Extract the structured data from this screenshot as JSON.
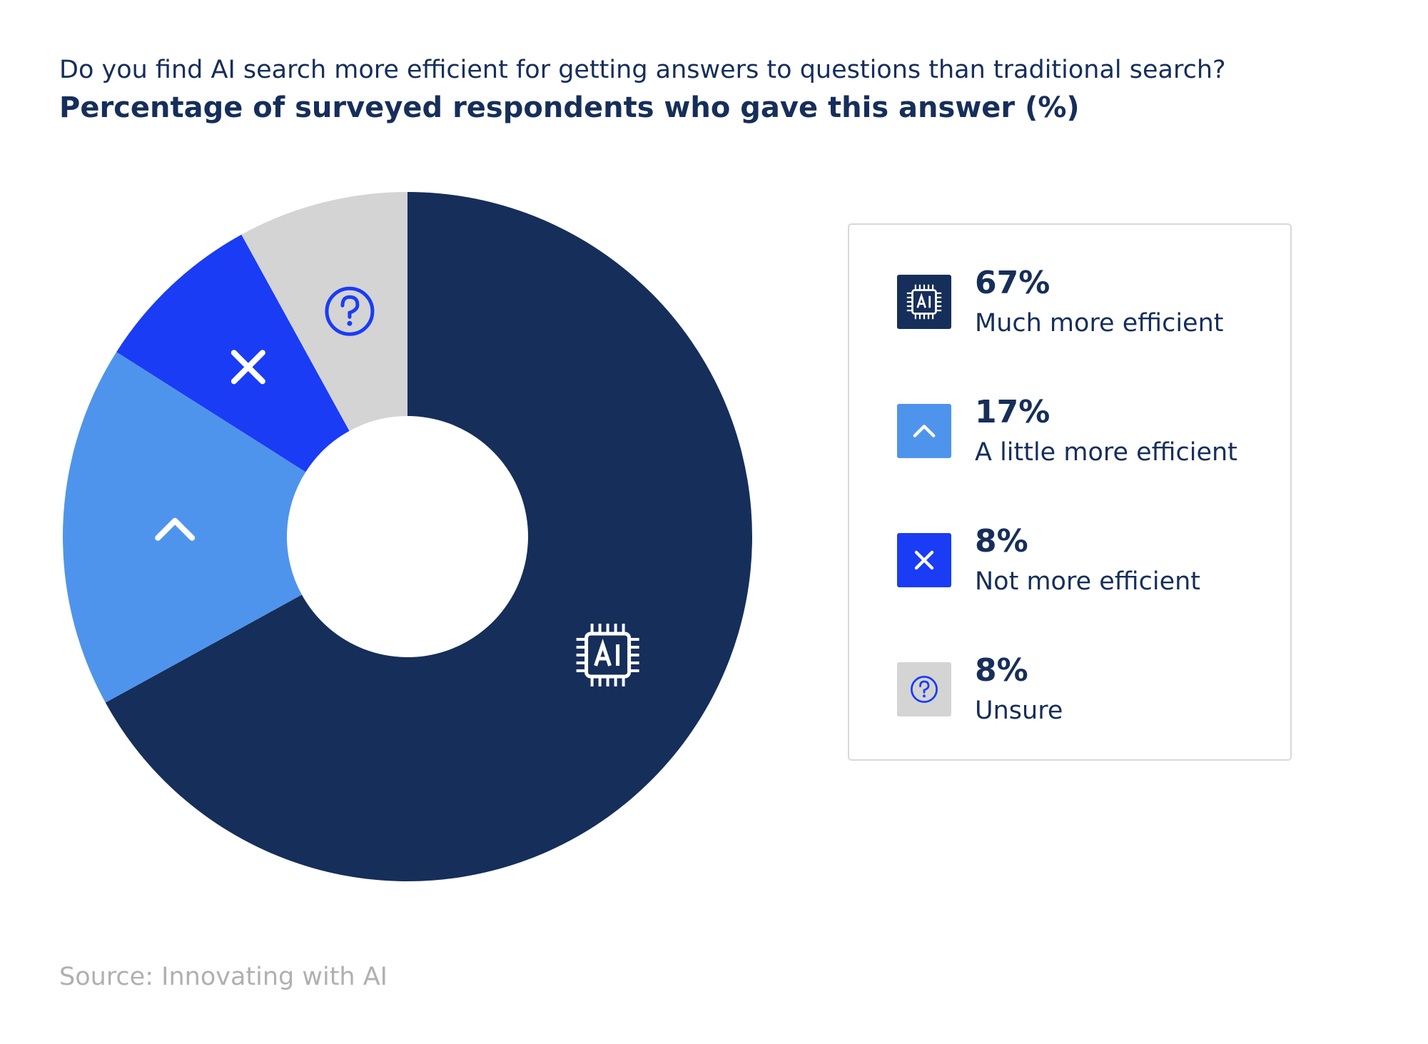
{
  "chart_data": {
    "type": "pie",
    "title": "Do you find AI search more efficient for getting answers to questions than traditional search?",
    "subtitle": "Percentage of surveyed respondents who gave this answer (%)",
    "source": "Source: Innovating with AI",
    "categories": [
      "Much more efficient",
      "A little more efficient",
      "Not more efficient",
      "Unsure"
    ],
    "values": [
      67,
      17,
      8,
      8
    ],
    "value_labels": [
      "67%",
      "17%",
      "8%",
      "8%"
    ],
    "colors": [
      "#162e5a",
      "#4f94ec",
      "#1a3cf5",
      "#d4d4d4"
    ],
    "donut": true
  }
}
